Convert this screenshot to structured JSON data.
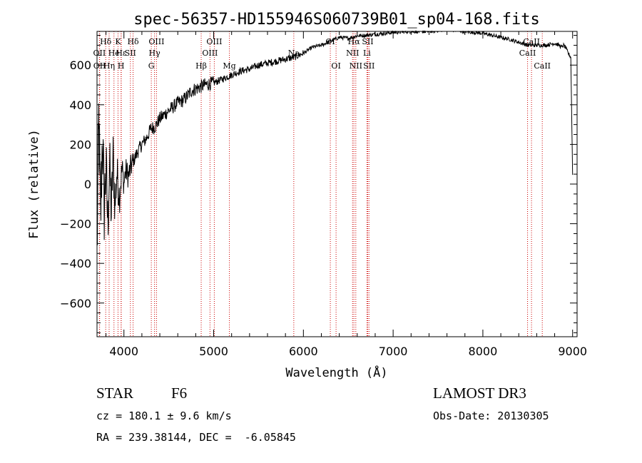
{
  "chart_data": {
    "type": "line",
    "title": "spec-56357-HD155946S060739B01_sp04-168.fits",
    "xlabel": "Wavelength (Å)",
    "ylabel": "Flux (relative)",
    "xlim": [
      3700,
      9050
    ],
    "ylim": [
      -770,
      770
    ],
    "x_ticks": [
      4000,
      5000,
      6000,
      7000,
      8000,
      9000
    ],
    "y_ticks": [
      -600,
      -400,
      -200,
      0,
      200,
      400,
      600
    ],
    "series": [
      {
        "name": "flux",
        "x": [
          3700,
          3720,
          3740,
          3760,
          3780,
          3800,
          3820,
          3840,
          3860,
          3880,
          3900,
          3920,
          3950,
          3980,
          4000,
          4020,
          4050,
          4080,
          4100,
          4130,
          4160,
          4200,
          4250,
          4300,
          4350,
          4400,
          4450,
          4500,
          4550,
          4600,
          4650,
          4700,
          4750,
          4800,
          4850,
          4900,
          5000,
          5100,
          5200,
          5300,
          5400,
          5500,
          5600,
          5700,
          5800,
          5900,
          6000,
          6100,
          6200,
          6300,
          6400,
          6500,
          6600,
          6700,
          6800,
          6900,
          7000,
          7200,
          7400,
          7600,
          7700,
          7800,
          8000,
          8200,
          8300,
          8400,
          8500,
          8600,
          8700,
          8800,
          8850,
          8880,
          8900,
          8920,
          8950,
          8980,
          9000
        ],
        "y": [
          -340,
          320,
          -200,
          250,
          -120,
          80,
          -200,
          100,
          -150,
          140,
          -120,
          60,
          -60,
          80,
          0,
          70,
          40,
          90,
          110,
          140,
          170,
          200,
          230,
          280,
          290,
          330,
          350,
          370,
          390,
          410,
          420,
          440,
          470,
          480,
          490,
          500,
          510,
          530,
          550,
          570,
          580,
          600,
          610,
          620,
          630,
          640,
          660,
          690,
          700,
          720,
          740,
          735,
          748,
          750,
          755,
          760,
          765,
          770,
          770,
          780,
          775,
          770,
          760,
          740,
          730,
          715,
          700,
          700,
          700,
          710,
          700,
          690,
          700,
          690,
          660,
          640,
          50
        ]
      }
    ],
    "spectral_lines": [
      {
        "label": "Hδ",
        "x": 3797,
        "row": 1
      },
      {
        "label": "OII",
        "x": 3727,
        "row": 2
      },
      {
        "label": "OII",
        "x": 3729,
        "row": 3
      },
      {
        "label": "He",
        "x": 3889,
        "row": 2
      },
      {
        "label": "Hη",
        "x": 3835,
        "row": 3
      },
      {
        "label": "K",
        "x": 3934,
        "row": 1
      },
      {
        "label": "Hε",
        "x": 3970,
        "row": 2
      },
      {
        "label": "H",
        "x": 3968,
        "row": 3
      },
      {
        "label": "SII",
        "x": 4072,
        "row": 2
      },
      {
        "label": "Hδ",
        "x": 4102,
        "row": 1
      },
      {
        "label": "OIII",
        "x": 4363,
        "row": 1
      },
      {
        "label": "Hγ",
        "x": 4341,
        "row": 2
      },
      {
        "label": "G",
        "x": 4305,
        "row": 3
      },
      {
        "label": "Hβ",
        "x": 4861,
        "row": 3
      },
      {
        "label": "OIII",
        "x": 5007,
        "row": 1
      },
      {
        "label": "OIII",
        "x": 4959,
        "row": 2
      },
      {
        "label": "Mg",
        "x": 5175,
        "row": 3
      },
      {
        "label": "Na",
        "x": 5893,
        "row": 2
      },
      {
        "label": "OI",
        "x": 6300,
        "row": 1
      },
      {
        "label": "OI",
        "x": 6364,
        "row": 3
      },
      {
        "label": "Hα",
        "x": 6563,
        "row": 1
      },
      {
        "label": "NII",
        "x": 6548,
        "row": 2
      },
      {
        "label": "NII",
        "x": 6584,
        "row": 3
      },
      {
        "label": "SII",
        "x": 6717,
        "row": 1
      },
      {
        "label": "Li",
        "x": 6708,
        "row": 2
      },
      {
        "label": "SII",
        "x": 6731,
        "row": 3
      },
      {
        "label": "CaII",
        "x": 8542,
        "row": 1
      },
      {
        "label": "CaII",
        "x": 8498,
        "row": 2
      },
      {
        "label": "CaII",
        "x": 8662,
        "row": 3
      }
    ]
  },
  "info": {
    "object_class": "STAR",
    "subclass": "F6",
    "survey": "LAMOST DR3",
    "redshift": "cz = 180.1 ± 9.6 km/s",
    "obs_date": "Obs-Date: 20130305",
    "coords": "RA = 239.38144, DEC =  -6.05845"
  },
  "colors": {
    "line_marker": "#cc0000",
    "spectrum": "#000000"
  }
}
